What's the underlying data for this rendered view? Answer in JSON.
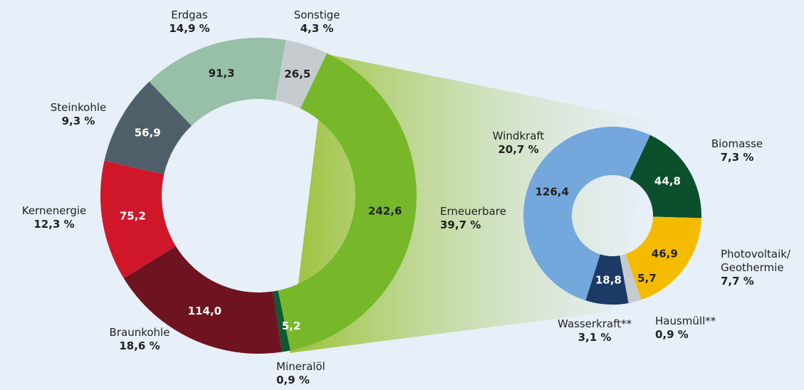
{
  "chart_data": [
    {
      "type": "donut",
      "categories": [
        "Erneuerbare",
        "Mineralöl",
        "Braunkohle",
        "Kernenergie",
        "Steinkohle",
        "Erdgas",
        "Sonstige"
      ],
      "values": [
        242.6,
        5.2,
        114.0,
        75.2,
        56.9,
        91.3,
        26.5
      ],
      "value_labels": [
        "242,6",
        "5,2",
        "114,0",
        "75,2",
        "56,9",
        "91,3",
        "26,5"
      ],
      "percentages": [
        39.7,
        0.9,
        18.6,
        12.3,
        9.3,
        14.9,
        4.3
      ],
      "percentage_labels": [
        "39,7 %",
        "0,9 %",
        "18,6 %",
        "12,3 %",
        "9,3 %",
        "14,9 %",
        "4,3 %"
      ],
      "colors": [
        "#76b82a",
        "#0b5a30",
        "#6e1420",
        "#d0172a",
        "#4f5f6a",
        "#98bfa8",
        "#c6cbd0"
      ]
    },
    {
      "type": "donut",
      "categories": [
        "Windkraft",
        "Biomasse",
        "Photovoltaik/ Geothermie",
        "Hausmüll**",
        "Wasserkraft**"
      ],
      "values": [
        126.4,
        44.8,
        46.9,
        5.7,
        18.8
      ],
      "value_labels": [
        "126,4",
        "44,8",
        "46,9",
        "5,7",
        "18,8"
      ],
      "percentages": [
        20.7,
        7.3,
        7.7,
        0.9,
        3.1
      ],
      "percentage_labels": [
        "20,7 %",
        "7,3 %",
        "7,7 %",
        "0,9 %",
        "3,1 %"
      ],
      "colors": [
        "#74a8dc",
        "#0b4f2c",
        "#f5bb00",
        "#c6cbd0",
        "#1b3a66"
      ]
    }
  ]
}
